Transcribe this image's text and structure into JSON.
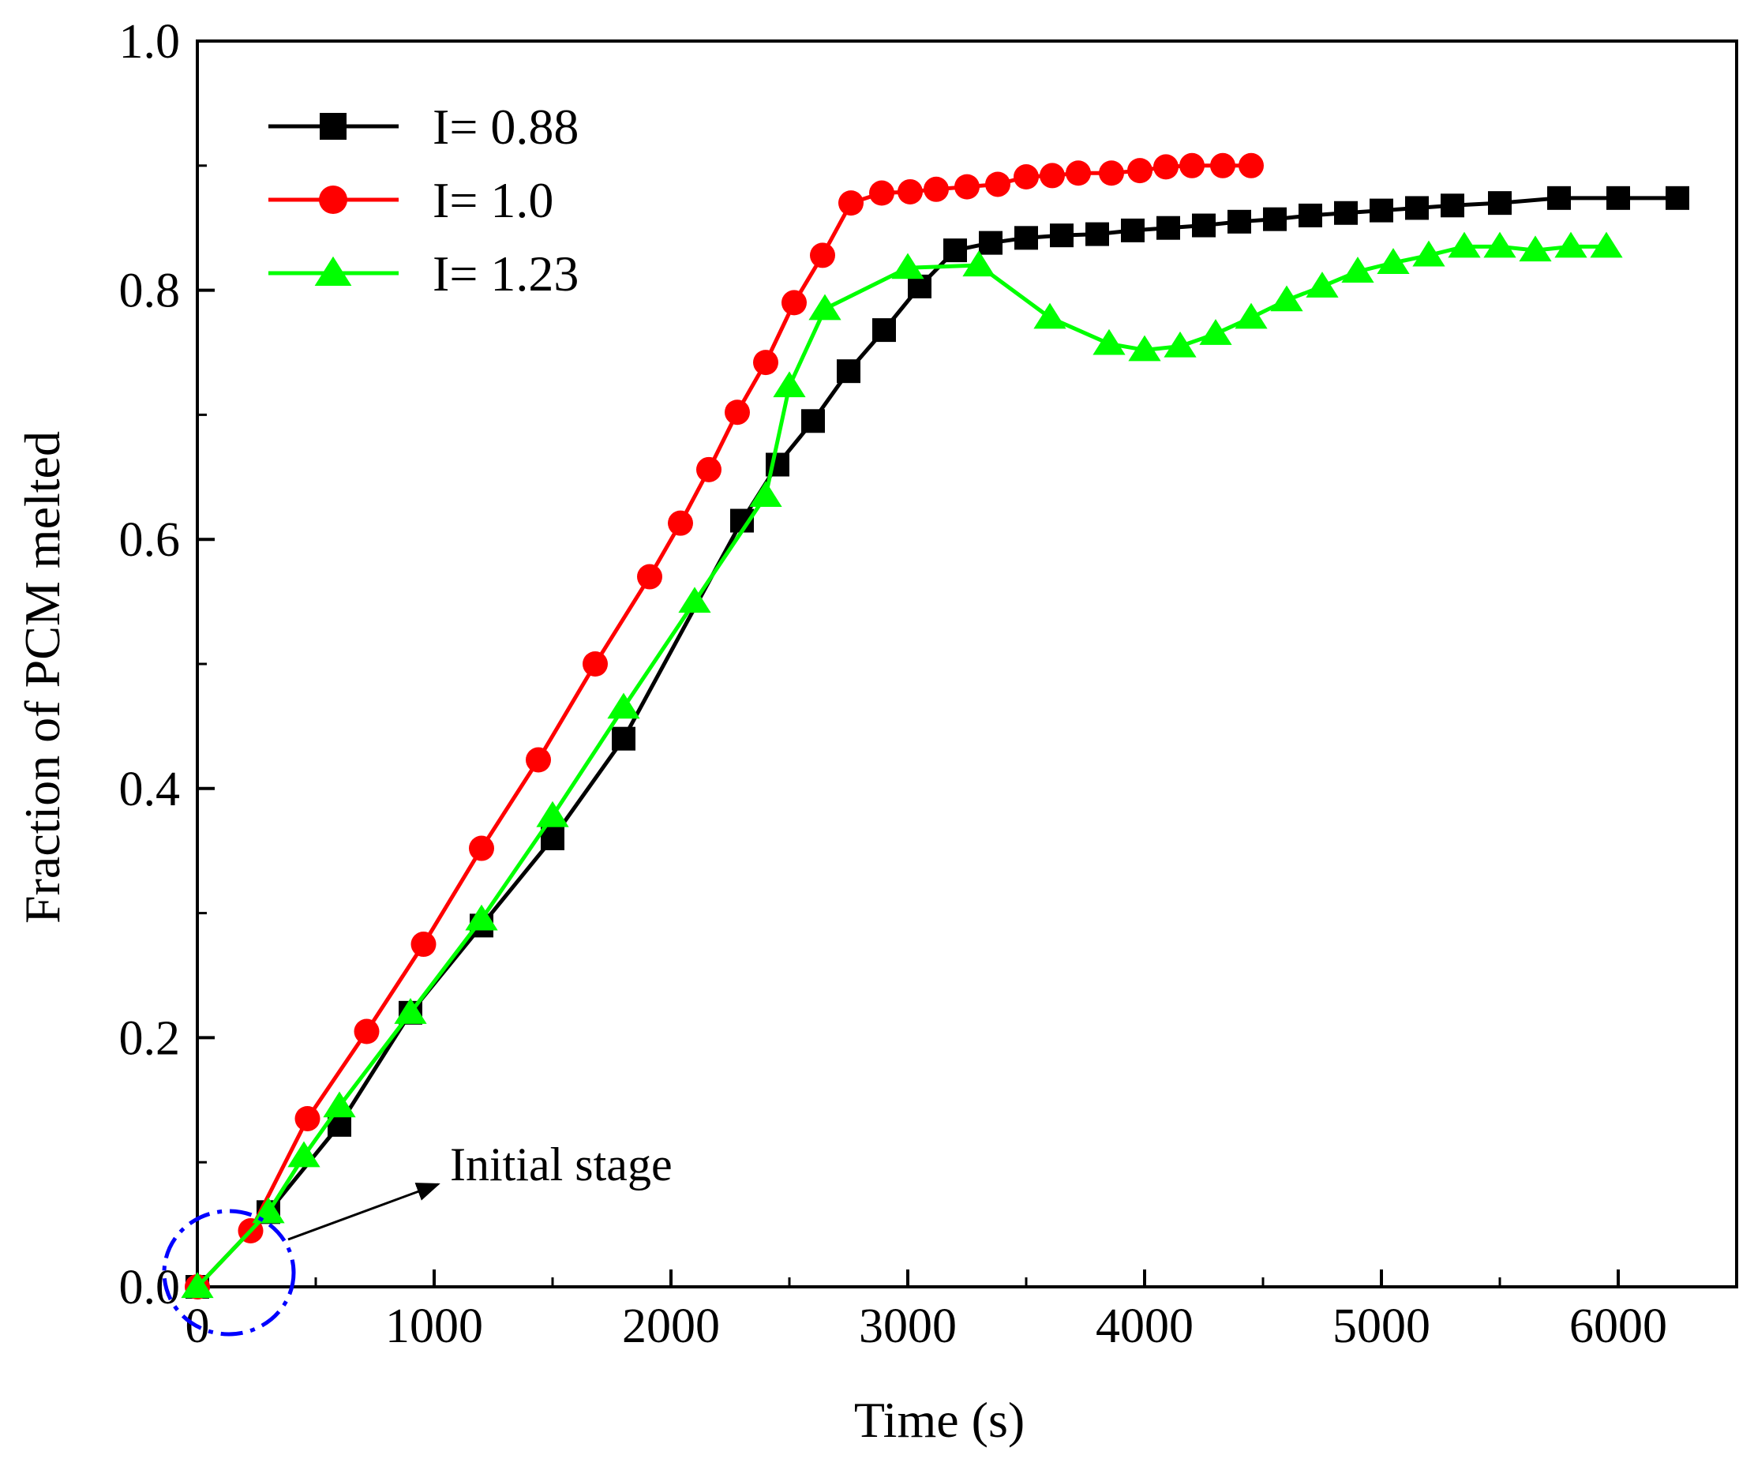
{
  "chart_data": {
    "type": "line",
    "title": "",
    "xlabel": "Time (s)",
    "ylabel": "Fraction of PCM melted",
    "xlim": [
      0,
      6500
    ],
    "ylim": [
      0.0,
      1.0
    ],
    "xticks": [
      0,
      1000,
      2000,
      3000,
      4000,
      5000,
      6000
    ],
    "xtick_labels": [
      "0",
      "1000",
      "2000",
      "3000",
      "4000",
      "5000",
      "6000"
    ],
    "yticks": [
      0.0,
      0.2,
      0.4,
      0.6,
      0.8,
      1.0
    ],
    "ytick_labels": [
      "0.0",
      "0.2",
      "0.4",
      "0.6",
      "0.8",
      "1.0"
    ],
    "grid": false,
    "legend_position": "top-left",
    "series": [
      {
        "name": "I= 0.88",
        "color": "#000000",
        "marker": "square",
        "x": [
          0,
          300,
          600,
          900,
          1200,
          1500,
          1800,
          2300,
          2450,
          2600,
          2750,
          2900,
          3050,
          3200,
          3350,
          3500,
          3650,
          3800,
          3950,
          4100,
          4250,
          4400,
          4550,
          4700,
          4850,
          5000,
          5150,
          5300,
          5500,
          5750,
          6000,
          6250
        ],
        "y": [
          0.0,
          0.06,
          0.13,
          0.22,
          0.29,
          0.36,
          0.44,
          0.615,
          0.66,
          0.695,
          0.735,
          0.768,
          0.803,
          0.832,
          0.838,
          0.842,
          0.844,
          0.845,
          0.848,
          0.85,
          0.852,
          0.855,
          0.857,
          0.86,
          0.862,
          0.864,
          0.866,
          0.868,
          0.87,
          0.874,
          0.874,
          0.874
        ]
      },
      {
        "name": "I= 1.0",
        "color": "#ff0000",
        "marker": "circle",
        "x": [
          0,
          225,
          465,
          715,
          955,
          1200,
          1440,
          1680,
          1910,
          2040,
          2160,
          2280,
          2400,
          2520,
          2640,
          2760,
          2890,
          3010,
          3120,
          3250,
          3380,
          3500,
          3610,
          3720,
          3860,
          3980,
          4090,
          4200,
          4330,
          4450
        ],
        "y": [
          0.0,
          0.045,
          0.135,
          0.205,
          0.275,
          0.352,
          0.423,
          0.5,
          0.57,
          0.613,
          0.656,
          0.702,
          0.742,
          0.79,
          0.828,
          0.87,
          0.878,
          0.879,
          0.881,
          0.883,
          0.885,
          0.891,
          0.892,
          0.894,
          0.894,
          0.896,
          0.899,
          0.9,
          0.9,
          0.9
        ]
      },
      {
        "name": "I= 1.23",
        "color": "#00ff00",
        "marker": "triangle",
        "x": [
          0,
          300,
          450,
          600,
          900,
          1200,
          1500,
          1800,
          2100,
          2400,
          2500,
          2650,
          3000,
          3300,
          3600,
          3850,
          4000,
          4150,
          4300,
          4450,
          4600,
          4750,
          4900,
          5050,
          5200,
          5350,
          5500,
          5650,
          5800,
          5950
        ],
        "y": [
          0.0,
          0.06,
          0.105,
          0.145,
          0.22,
          0.295,
          0.378,
          0.465,
          0.55,
          0.635,
          0.723,
          0.785,
          0.818,
          0.82,
          0.778,
          0.757,
          0.752,
          0.755,
          0.765,
          0.778,
          0.792,
          0.803,
          0.815,
          0.822,
          0.828,
          0.835,
          0.835,
          0.832,
          0.835,
          0.835
        ]
      }
    ],
    "annotations": [
      {
        "text": "Initial stage",
        "kind": "arrow-label",
        "target": "dashed circle around the origin (initial stage)"
      }
    ]
  }
}
